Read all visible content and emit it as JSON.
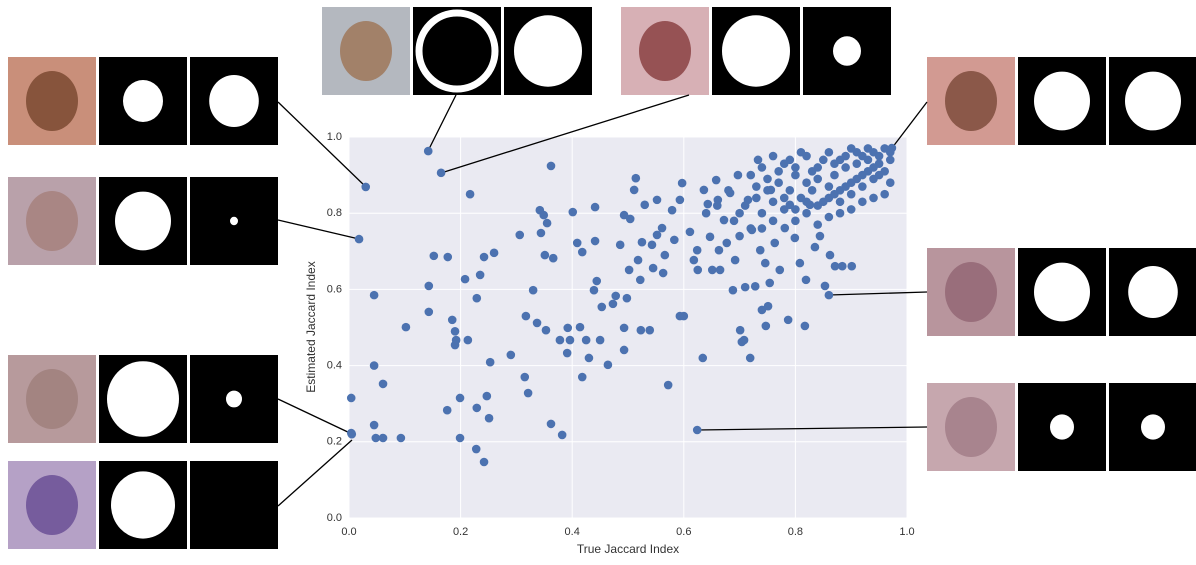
{
  "chart_data": {
    "type": "scatter",
    "x_label": "True Jaccard Index",
    "y_label": "Estimated Jaccard Index",
    "color": "#4c72b0",
    "grid": true,
    "xlim": [
      0,
      1
    ],
    "ylim": [
      0,
      1
    ],
    "xticks": [
      {
        "value": 0,
        "label": "0.0"
      },
      0.2,
      0.4,
      0.6,
      0.8,
      {
        "value": 1,
        "label": "1.0"
      }
    ],
    "yticks": [
      {
        "value": 0,
        "label": "0.0"
      },
      0.2,
      0.4,
      0.6,
      0.8,
      {
        "value": 1,
        "label": "1.0"
      }
    ],
    "x": [
      0.03,
      0.018,
      0.142,
      0.165,
      0.973,
      0.86,
      0.624,
      0.005,
      0.004,
      0.004,
      0.045,
      0.061,
      0.045,
      0.045,
      0.048,
      0.061,
      0.093,
      0.102,
      0.143,
      0.143,
      0.152,
      0.177,
      0.217,
      0.176,
      0.185,
      0.19,
      0.192,
      0.19,
      0.199,
      0.199,
      0.208,
      0.213,
      0.229,
      0.235,
      0.229,
      0.228,
      0.242,
      0.242,
      0.247,
      0.251,
      0.26,
      0.253,
      0.29,
      0.306,
      0.317,
      0.315,
      0.321,
      0.33,
      0.337,
      0.342,
      0.349,
      0.344,
      0.355,
      0.351,
      0.362,
      0.366,
      0.353,
      0.362,
      0.378,
      0.382,
      0.392,
      0.396,
      0.391,
      0.401,
      0.409,
      0.418,
      0.414,
      0.418,
      0.425,
      0.43,
      0.441,
      0.439,
      0.444,
      0.441,
      0.45,
      0.453,
      0.464,
      0.473,
      0.478,
      0.486,
      0.493,
      0.493,
      0.504,
      0.502,
      0.493,
      0.498,
      0.514,
      0.511,
      0.518,
      0.522,
      0.523,
      0.525,
      0.53,
      0.539,
      0.543,
      0.545,
      0.552,
      0.552,
      0.561,
      0.566,
      0.563,
      0.572,
      0.579,
      0.583,
      0.593,
      0.6,
      0.597,
      0.593,
      0.611,
      0.618,
      0.624,
      0.625,
      0.634,
      0.636,
      0.643,
      0.647,
      0.651,
      0.658,
      0.661,
      0.663,
      0.665,
      0.672,
      0.677,
      0.683,
      0.688,
      0.692,
      0.697,
      0.701,
      0.704,
      0.708,
      0.71,
      0.715,
      0.719,
      0.722,
      0.728,
      0.733,
      0.737,
      0.74,
      0.746,
      0.747,
      0.751,
      0.754,
      0.756,
      0.763,
      0.772,
      0.781,
      0.787,
      0.79,
      0.799,
      0.808,
      0.817,
      0.819,
      0.826,
      0.835,
      0.844,
      0.853,
      0.862,
      0.871,
      0.884,
      0.901,
      0.72,
      0.74,
      0.76,
      0.78,
      0.8,
      0.82,
      0.84,
      0.86,
      0.88,
      0.9,
      0.92,
      0.94,
      0.96,
      0.95,
      0.93,
      0.91,
      0.89,
      0.87,
      0.85,
      0.83,
      0.81,
      0.79,
      0.77,
      0.75,
      0.73,
      0.71,
      0.74,
      0.78,
      0.82,
      0.86,
      0.9,
      0.94,
      0.97,
      0.96,
      0.92,
      0.88,
      0.84,
      0.8,
      0.76,
      0.7,
      0.68,
      0.66,
      0.69,
      0.72,
      0.87,
      0.89,
      0.91,
      0.93,
      0.95,
      0.97,
      0.96,
      0.94,
      0.92,
      0.9,
      0.88,
      0.86,
      0.84,
      0.82,
      0.8,
      0.85,
      0.83,
      0.81,
      0.79,
      0.77,
      0.75,
      0.73,
      0.93,
      0.91,
      0.89,
      0.87,
      0.95,
      0.97,
      0.94,
      0.92,
      0.9,
      0.88,
      0.86,
      0.84,
      0.82,
      0.8,
      0.78,
      0.76,
      0.74,
      0.7,
      0.64
    ],
    "y": [
      0.869,
      0.732,
      0.963,
      0.906,
      0.971,
      0.585,
      0.231,
      0.22,
      0.315,
      0.223,
      0.4,
      0.352,
      0.585,
      0.244,
      0.21,
      0.21,
      0.21,
      0.501,
      0.609,
      0.541,
      0.688,
      0.685,
      0.85,
      0.283,
      0.52,
      0.49,
      0.467,
      0.454,
      0.315,
      0.21,
      0.627,
      0.467,
      0.577,
      0.638,
      0.289,
      0.181,
      0.147,
      0.685,
      0.32,
      0.262,
      0.696,
      0.409,
      0.428,
      0.743,
      0.53,
      0.37,
      0.328,
      0.598,
      0.512,
      0.808,
      0.795,
      0.748,
      0.774,
      0.69,
      0.924,
      0.682,
      0.493,
      0.247,
      0.467,
      0.218,
      0.499,
      0.467,
      0.433,
      0.803,
      0.722,
      0.698,
      0.501,
      0.37,
      0.467,
      0.42,
      0.816,
      0.598,
      0.622,
      0.727,
      0.467,
      0.554,
      0.402,
      0.562,
      0.583,
      0.717,
      0.499,
      0.795,
      0.785,
      0.651,
      0.441,
      0.577,
      0.892,
      0.861,
      0.677,
      0.625,
      0.493,
      0.724,
      0.822,
      0.493,
      0.717,
      0.656,
      0.835,
      0.743,
      0.761,
      0.69,
      0.643,
      0.349,
      0.808,
      0.73,
      0.53,
      0.53,
      0.879,
      0.835,
      0.751,
      0.677,
      0.703,
      0.651,
      0.42,
      0.861,
      0.824,
      0.738,
      0.651,
      0.887,
      0.835,
      0.703,
      0.651,
      0.782,
      0.722,
      0.853,
      0.598,
      0.677,
      0.9,
      0.493,
      0.462,
      0.467,
      0.606,
      0.835,
      0.42,
      0.756,
      0.608,
      0.94,
      0.703,
      0.546,
      0.669,
      0.504,
      0.556,
      0.617,
      0.861,
      0.722,
      0.651,
      0.761,
      0.52,
      0.822,
      0.735,
      0.669,
      0.504,
      0.625,
      0.822,
      0.711,
      0.74,
      0.609,
      0.69,
      0.661,
      0.661,
      0.661,
      0.9,
      0.92,
      0.95,
      0.93,
      0.9,
      0.95,
      0.92,
      0.96,
      0.94,
      0.97,
      0.95,
      0.96,
      0.97,
      0.93,
      0.91,
      0.89,
      0.87,
      0.85,
      0.83,
      0.86,
      0.84,
      0.86,
      0.88,
      0.86,
      0.84,
      0.82,
      0.8,
      0.81,
      0.8,
      0.79,
      0.81,
      0.84,
      0.88,
      0.85,
      0.83,
      0.8,
      0.77,
      0.78,
      0.78,
      0.8,
      0.86,
      0.82,
      0.78,
      0.76,
      0.9,
      0.92,
      0.93,
      0.94,
      0.95,
      0.94,
      0.91,
      0.89,
      0.87,
      0.85,
      0.83,
      0.87,
      0.89,
      0.88,
      0.92,
      0.94,
      0.91,
      0.96,
      0.94,
      0.91,
      0.89,
      0.87,
      0.97,
      0.96,
      0.95,
      0.93,
      0.9,
      0.96,
      0.92,
      0.9,
      0.88,
      0.86,
      0.84,
      0.82,
      0.83,
      0.81,
      0.84,
      0.83,
      0.76,
      0.74,
      0.8
    ]
  }
}
